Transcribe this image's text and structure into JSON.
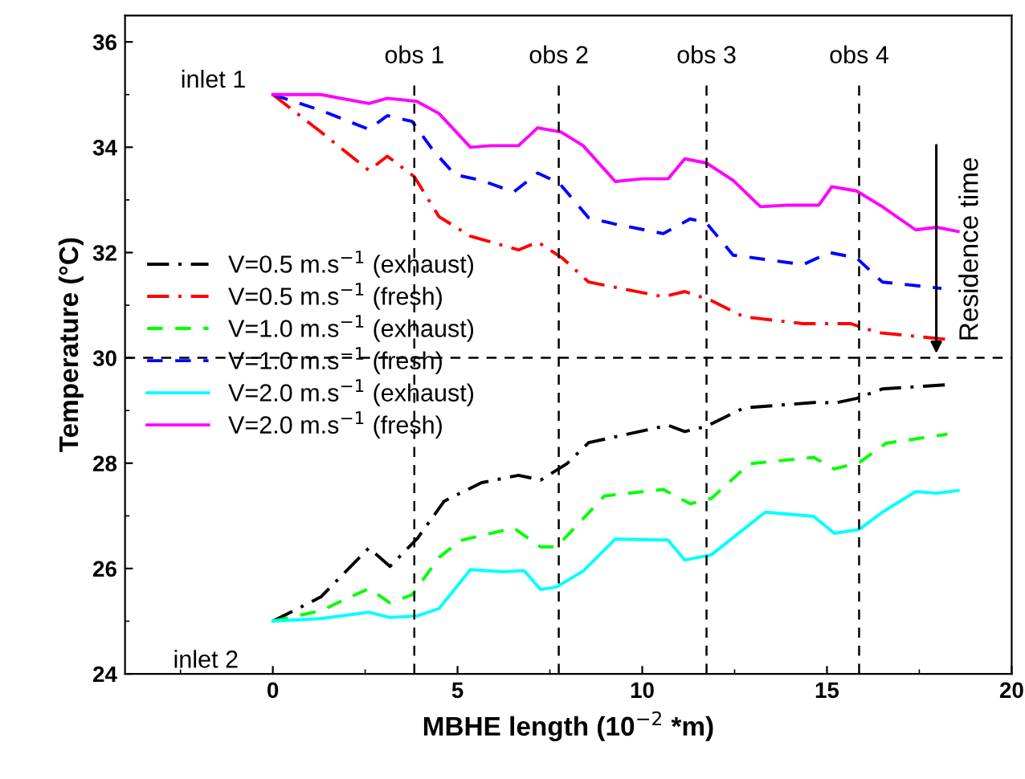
{
  "chart_data": {
    "type": "line",
    "xlabel": "MBHE length (10$^{−2}$ *m)",
    "ylabel": "Temperature (°C)",
    "xlim": [
      -4,
      20
    ],
    "xticks": [
      0,
      5,
      10,
      15,
      20
    ],
    "ylim": [
      24,
      36.5
    ],
    "yticks": [
      24,
      26,
      28,
      30,
      32,
      34,
      36
    ],
    "legend": "left",
    "grid": false,
    "series": [
      {
        "name": "V=0.5 m.s$^{−1}$ (exhaust)",
        "color": "#000000",
        "line_style": "dashdot",
        "x": [
          0,
          1.3,
          2.6,
          3.17,
          3.91,
          4.64,
          5.65,
          6.65,
          7.25,
          7.96,
          8.55,
          10.7,
          11.15,
          11.74,
          12.75,
          14.8,
          15.2,
          15.8,
          16.5,
          18.26
        ],
        "values": [
          25,
          25.46,
          26.39,
          26.04,
          26.57,
          27.28,
          27.63,
          27.77,
          27.68,
          27.99,
          28.39,
          28.72,
          28.6,
          28.7,
          29.05,
          29.16,
          29.14,
          29.23,
          29.41,
          29.49
        ]
      },
      {
        "name": "V=0.5 m.s$^{−1}$ (fresh)",
        "color": "#ff0000",
        "line_style": "dashdot",
        "x": [
          0,
          1.3,
          2.6,
          3.1,
          3.83,
          4.5,
          5.35,
          6.65,
          7.17,
          7.83,
          8.55,
          10.57,
          11.15,
          11.87,
          12.75,
          14.35,
          15.65,
          16.38,
          18.26
        ],
        "values": [
          35,
          34.29,
          33.56,
          33.83,
          33.44,
          32.68,
          32.31,
          32.05,
          32.2,
          31.9,
          31.44,
          31.16,
          31.26,
          31.09,
          30.78,
          30.65,
          30.65,
          30.48,
          30.35
        ]
      },
      {
        "name": "V=1.0 m.s$^{−1}$ (exhaust)",
        "color": "#00ff00",
        "line_style": "dashed",
        "x": [
          0,
          1.3,
          2.6,
          3.17,
          3.77,
          4.5,
          5.07,
          6.52,
          7.25,
          7.68,
          8.98,
          10.57,
          11.3,
          11.87,
          12.9,
          14.64,
          15.2,
          15.87,
          16.6,
          18.26
        ],
        "values": [
          25,
          25.2,
          25.62,
          25.35,
          25.5,
          26.21,
          26.53,
          26.77,
          26.41,
          26.41,
          27.38,
          27.5,
          27.23,
          27.33,
          27.99,
          28.11,
          27.89,
          28.01,
          28.38,
          28.55
        ]
      },
      {
        "name": "V=1.0 m.s$^{−1}$ (fresh)",
        "color": "#0000ff",
        "line_style": "dashed",
        "x": [
          0,
          1.3,
          2.6,
          3.1,
          3.77,
          4.35,
          4.93,
          5.65,
          6.52,
          7.17,
          7.75,
          8.55,
          9.27,
          10.57,
          11.3,
          11.74,
          12.46,
          13.33,
          14.35,
          15.07,
          15.8,
          16.5,
          18.1
        ],
        "values": [
          35,
          34.7,
          34.34,
          34.6,
          34.49,
          33.93,
          33.48,
          33.37,
          33.15,
          33.51,
          33.32,
          32.66,
          32.54,
          32.36,
          32.64,
          32.56,
          31.95,
          31.87,
          31.77,
          32.0,
          31.9,
          31.44,
          31.32
        ]
      },
      {
        "name": "V=2.0 m.s$^{−1}$ (exhaust)",
        "color": "#00ffff",
        "line_style": "solid",
        "x": [
          0,
          1.3,
          2.6,
          3.17,
          3.91,
          4.5,
          5.35,
          6.22,
          6.8,
          7.25,
          7.68,
          8.4,
          9.27,
          10.7,
          11.15,
          11.87,
          13.33,
          14.64,
          15.2,
          15.87,
          16.5,
          17.4,
          17.97,
          18.55
        ],
        "values": [
          25,
          25.05,
          25.17,
          25.07,
          25.1,
          25.24,
          25.98,
          25.94,
          25.96,
          25.6,
          25.65,
          25.95,
          26.56,
          26.54,
          26.16,
          26.26,
          27.07,
          26.99,
          26.67,
          26.74,
          27.07,
          27.46,
          27.43,
          27.48
        ]
      },
      {
        "name": "V=2.0 m.s$^{−1}$ (fresh)",
        "color": "#ff00ff",
        "line_style": "solid",
        "x": [
          0,
          1.3,
          2.6,
          3.1,
          3.9,
          4.5,
          5.35,
          5.9,
          6.65,
          7.17,
          7.8,
          8.4,
          9.27,
          10.0,
          10.7,
          11.15,
          11.74,
          12.46,
          13.2,
          13.9,
          14.78,
          15.13,
          15.8,
          16.5,
          17.4,
          17.97,
          18.55
        ],
        "values": [
          35,
          35,
          34.83,
          34.93,
          34.87,
          34.64,
          34.0,
          34.03,
          34.03,
          34.37,
          34.29,
          34.03,
          33.35,
          33.4,
          33.4,
          33.78,
          33.7,
          33.37,
          32.87,
          32.9,
          32.9,
          33.25,
          33.17,
          32.87,
          32.43,
          32.48,
          32.4
        ]
      }
    ],
    "ref_lines": [
      {
        "axis": "x",
        "value": 3.83,
        "label": "obs 1",
        "line_style": "dashed",
        "color": "#000000"
      },
      {
        "axis": "x",
        "value": 7.74,
        "label": "obs 2",
        "line_style": "dashed",
        "color": "#000000"
      },
      {
        "axis": "x",
        "value": 11.74,
        "label": "obs 3",
        "line_style": "dashed",
        "color": "#000000"
      },
      {
        "axis": "x",
        "value": 15.87,
        "label": "obs 4",
        "line_style": "dashed",
        "color": "#000000"
      },
      {
        "axis": "y",
        "value": 30,
        "label": null,
        "line_style": "dashed",
        "color": "#000000"
      }
    ],
    "annotations": [
      {
        "text": "inlet 1",
        "x": 0,
        "y": 35
      },
      {
        "text": "inlet 2",
        "x": 0,
        "y": 25
      },
      "Residence time"
    ]
  }
}
